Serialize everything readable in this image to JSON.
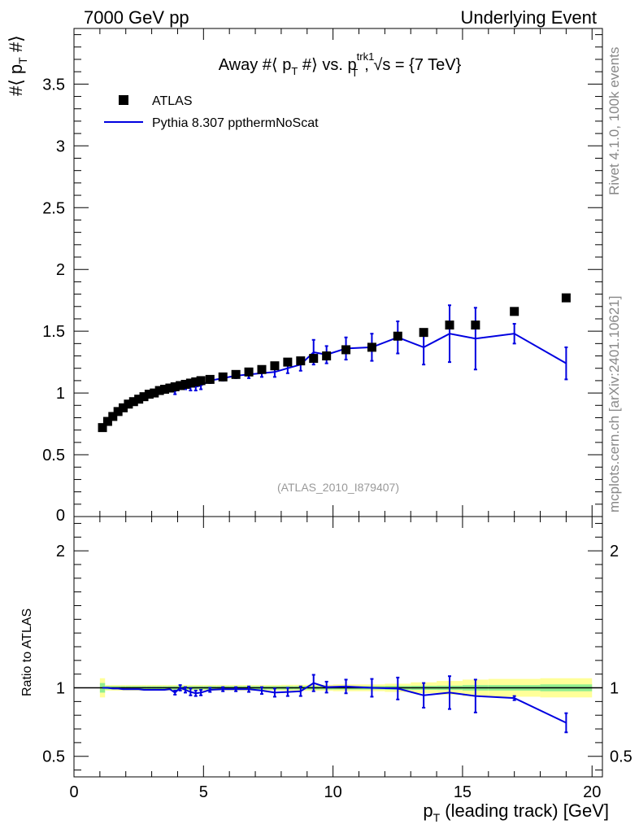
{
  "header": {
    "left": "7000 GeV pp",
    "right": "Underlying Event"
  },
  "side_text": {
    "rivet": "Rivet 4.1.0,  100k events",
    "mcplots": "mcplots.cern.ch [arXiv:2401.10621]"
  },
  "colors": {
    "data": "#000000",
    "mc": "#0000e0",
    "band_inner": "#90ee90",
    "band_outer": "#ffff99"
  },
  "chart_data": {
    "type": "scatter",
    "title": "Away #⟨ p_T #⟩ vs. p_T^trk1, √s = {7 TeV}",
    "title_parts": {
      "pre": "Away #⟨ p",
      "sub1": "T",
      "mid": " #⟩ vs. p",
      "sup": "trk1",
      "sub2": "T",
      "post": ", √s = {7 TeV}"
    },
    "analysis_label": "(ATLAS_2010_I879407)",
    "xlabel": "p_T (leading track) [GeV]",
    "xlabel_parts": {
      "pre": "p",
      "sub": "T",
      "post": " (leading track) [GeV]"
    },
    "ylabel": "#⟨ p_T #⟩",
    "ylabel_parts": {
      "pre": "#⟨ p",
      "sub": "T",
      "post": " #⟩"
    },
    "ratio_ylabel": "Ratio to ATLAS",
    "xlim": [
      0,
      20.4
    ],
    "ylim": [
      0,
      3.95
    ],
    "ratio_ylim": [
      0.35,
      2.25
    ],
    "x_ticks": [
      0,
      5,
      10,
      15,
      20
    ],
    "x_tick_labels": [
      "0",
      "5",
      "10",
      "15",
      "20"
    ],
    "y_ticks": [
      0.5,
      1,
      1.5,
      2,
      2.5,
      3,
      3.5
    ],
    "y_tick_labels": [
      "0.5",
      "1",
      "1.5",
      "2",
      "2.5",
      "3",
      "3.5"
    ],
    "y_zero_label": "0",
    "ratio_ticks": [
      0.5,
      1,
      2
    ],
    "ratio_tick_labels": [
      "0.5",
      "1",
      "2"
    ],
    "legend": {
      "position": "top-left",
      "entries": [
        "ATLAS",
        "Pythia 8.307 ppthermNoScat"
      ]
    },
    "series": [
      {
        "name": "ATLAS",
        "x": [
          1.1,
          1.3,
          1.5,
          1.7,
          1.9,
          2.1,
          2.3,
          2.5,
          2.7,
          2.9,
          3.1,
          3.3,
          3.5,
          3.7,
          3.9,
          4.1,
          4.3,
          4.5,
          4.7,
          4.9,
          5.25,
          5.75,
          6.25,
          6.75,
          7.25,
          7.75,
          8.25,
          8.75,
          9.25,
          9.75,
          10.5,
          11.5,
          12.5,
          13.5,
          14.5,
          15.5,
          17.0,
          19.0
        ],
        "y": [
          0.72,
          0.77,
          0.81,
          0.85,
          0.88,
          0.91,
          0.93,
          0.95,
          0.97,
          0.99,
          1.0,
          1.02,
          1.03,
          1.04,
          1.05,
          1.06,
          1.07,
          1.08,
          1.09,
          1.1,
          1.11,
          1.13,
          1.15,
          1.17,
          1.19,
          1.22,
          1.25,
          1.26,
          1.28,
          1.3,
          1.35,
          1.37,
          1.46,
          1.49,
          1.55,
          1.55,
          1.66,
          1.77
        ]
      },
      {
        "name": "Pythia 8.307 ppthermNoScat",
        "x": [
          1.1,
          1.3,
          1.5,
          1.7,
          1.9,
          2.1,
          2.3,
          2.5,
          2.7,
          2.9,
          3.1,
          3.3,
          3.5,
          3.7,
          3.9,
          4.1,
          4.3,
          4.5,
          4.7,
          4.9,
          5.25,
          5.75,
          6.25,
          6.75,
          7.25,
          7.75,
          8.25,
          8.75,
          9.25,
          9.75,
          10.5,
          11.5,
          12.5,
          13.5,
          14.5,
          15.5,
          17.0,
          19.0
        ],
        "y": [
          0.72,
          0.77,
          0.81,
          0.85,
          0.87,
          0.9,
          0.92,
          0.94,
          0.96,
          0.98,
          0.99,
          1.0,
          1.01,
          1.02,
          1.01,
          1.06,
          1.05,
          1.05,
          1.05,
          1.06,
          1.1,
          1.12,
          1.14,
          1.15,
          1.16,
          1.17,
          1.2,
          1.23,
          1.33,
          1.31,
          1.36,
          1.37,
          1.45,
          1.37,
          1.48,
          1.44,
          1.48,
          1.24
        ],
        "yerr": [
          0.005,
          0.005,
          0.005,
          0.005,
          0.005,
          0.005,
          0.005,
          0.005,
          0.005,
          0.005,
          0.005,
          0.005,
          0.01,
          0.01,
          0.02,
          0.02,
          0.02,
          0.03,
          0.03,
          0.03,
          0.02,
          0.02,
          0.02,
          0.03,
          0.03,
          0.04,
          0.04,
          0.05,
          0.1,
          0.07,
          0.09,
          0.11,
          0.13,
          0.14,
          0.23,
          0.25,
          0.08,
          0.13
        ]
      }
    ],
    "ratio": {
      "x": [
        1.1,
        1.3,
        1.5,
        1.7,
        1.9,
        2.1,
        2.3,
        2.5,
        2.7,
        2.9,
        3.1,
        3.3,
        3.5,
        3.7,
        3.9,
        4.1,
        4.3,
        4.5,
        4.7,
        4.9,
        5.25,
        5.75,
        6.25,
        6.75,
        7.25,
        7.75,
        8.25,
        8.75,
        9.25,
        9.75,
        10.5,
        11.5,
        12.5,
        13.5,
        14.5,
        15.5,
        17.0,
        19.0
      ],
      "y": [
        1.0,
        1.0,
        0.995,
        0.995,
        0.99,
        0.99,
        0.99,
        0.99,
        0.985,
        0.985,
        0.985,
        0.985,
        0.985,
        0.99,
        0.965,
        1.0,
        0.985,
        0.97,
        0.96,
        0.965,
        0.985,
        0.99,
        0.99,
        0.99,
        0.98,
        0.965,
        0.97,
        0.975,
        1.035,
        1.005,
        1.01,
        1.0,
        0.995,
        0.945,
        0.965,
        0.94,
        0.925,
        0.745
      ],
      "yerr": [
        0.005,
        0.005,
        0.005,
        0.005,
        0.005,
        0.005,
        0.005,
        0.005,
        0.005,
        0.005,
        0.005,
        0.005,
        0.01,
        0.01,
        0.015,
        0.02,
        0.02,
        0.025,
        0.02,
        0.02,
        0.015,
        0.015,
        0.015,
        0.02,
        0.025,
        0.03,
        0.03,
        0.035,
        0.06,
        0.04,
        0.05,
        0.065,
        0.08,
        0.09,
        0.12,
        0.12,
        0.015,
        0.07
      ]
    },
    "ratio_bands": {
      "x_edges": [
        1.0,
        1.2,
        1.4,
        1.6,
        1.8,
        2.0,
        2.2,
        2.4,
        2.6,
        2.8,
        3.0,
        3.2,
        3.4,
        3.6,
        3.8,
        4.0,
        4.2,
        4.4,
        4.6,
        4.8,
        5.0,
        5.5,
        6.0,
        6.5,
        7.0,
        7.5,
        8.0,
        8.5,
        9.0,
        9.5,
        10.0,
        11.0,
        12.0,
        13.0,
        14.0,
        15.0,
        16.0,
        18.0,
        20.0
      ],
      "inner": [
        0.035,
        0.012,
        0.012,
        0.012,
        0.012,
        0.012,
        0.012,
        0.012,
        0.012,
        0.012,
        0.012,
        0.012,
        0.012,
        0.012,
        0.012,
        0.012,
        0.012,
        0.012,
        0.012,
        0.012,
        0.012,
        0.012,
        0.012,
        0.012,
        0.012,
        0.012,
        0.012,
        0.012,
        0.012,
        0.012,
        0.012,
        0.012,
        0.014,
        0.015,
        0.016,
        0.02,
        0.02,
        0.025
      ],
      "outer": [
        0.07,
        0.02,
        0.02,
        0.02,
        0.02,
        0.02,
        0.02,
        0.02,
        0.02,
        0.02,
        0.02,
        0.02,
        0.02,
        0.02,
        0.02,
        0.02,
        0.02,
        0.02,
        0.02,
        0.02,
        0.02,
        0.02,
        0.02,
        0.02,
        0.02,
        0.02,
        0.022,
        0.022,
        0.022,
        0.022,
        0.025,
        0.025,
        0.03,
        0.04,
        0.05,
        0.06,
        0.065,
        0.07
      ]
    }
  }
}
